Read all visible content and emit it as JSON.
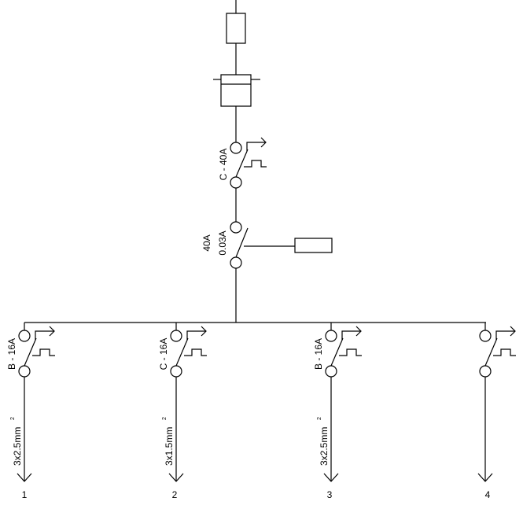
{
  "main_breaker": {
    "rating": "C - 40A"
  },
  "rcd": {
    "rating_current": "40A",
    "rating_sensitivity": "0.03A"
  },
  "circuits": [
    {
      "number": "1",
      "breaker": "B - 16A",
      "cable": "3x2.5mm",
      "cable_sup": "2"
    },
    {
      "number": "2",
      "breaker": "C - 16A",
      "cable": "3x1.5mm",
      "cable_sup": "2"
    },
    {
      "number": "3",
      "breaker": "B - 16A",
      "cable": "3x2.5mm",
      "cable_sup": "2"
    },
    {
      "number": "4",
      "breaker": "",
      "cable": "",
      "cable_sup": ""
    }
  ]
}
